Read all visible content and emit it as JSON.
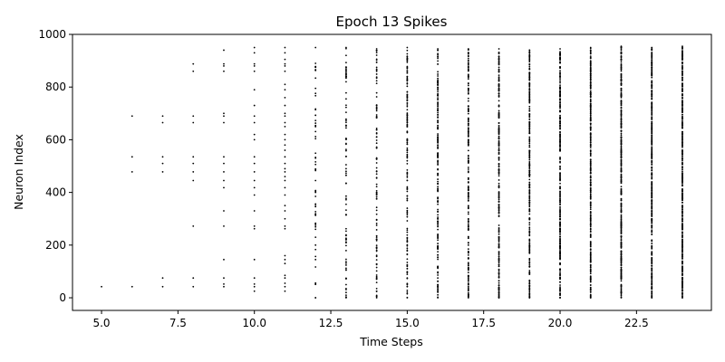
{
  "chart_data": {
    "type": "scatter",
    "title": "Epoch 13 Spikes",
    "xlabel": "Time Steps",
    "ylabel": "Neuron Index",
    "xlim": [
      4.05,
      24.95
    ],
    "ylim": [
      -48,
      1000
    ],
    "xticks": [
      5.0,
      7.5,
      10.0,
      12.5,
      15.0,
      17.5,
      20.0,
      22.5
    ],
    "xtick_labels": [
      "5.0",
      "7.5",
      "10.0",
      "12.5",
      "15.0",
      "17.5",
      "20.0",
      "22.5"
    ],
    "yticks": [
      0,
      200,
      400,
      600,
      800,
      1000
    ],
    "ytick_labels": [
      "0",
      "200",
      "400",
      "600",
      "800",
      "1000"
    ],
    "grid": false,
    "marker_color": "#000000",
    "series": [
      {
        "columns": [
          {
            "t": 5,
            "neurons": [
              42
            ]
          },
          {
            "t": 6,
            "neurons": [
              42,
              478,
              535,
              690
            ]
          },
          {
            "t": 7,
            "neurons": [
              42,
              75,
              478,
              510,
              535,
              665,
              690
            ]
          },
          {
            "t": 8,
            "neurons": [
              42,
              75,
              272,
              445,
              478,
              510,
              535,
              665,
              690,
              860,
              888
            ]
          },
          {
            "t": 9,
            "neurons": [
              42,
              52,
              75,
              145,
              272,
              330,
              418,
              445,
              478,
              510,
              535,
              665,
              690,
              700,
              860,
              880,
              888,
              940
            ]
          },
          {
            "t": 10,
            "neurons": [
              25,
              42,
              52,
              75,
              145,
              262,
              272,
              330,
              390,
              418,
              445,
              478,
              510,
              535,
              600,
              620,
              665,
              690,
              730,
              790,
              860,
              880,
              888,
              930,
              950
            ]
          },
          {
            "t": 11,
            "neurons": [
              25,
              42,
              55,
              75,
              85,
              130,
              145,
              160,
              262,
              272,
              300,
              330,
              350,
              390,
              418,
              445,
              460,
              478,
              490,
              510,
              535,
              560,
              580,
              600,
              620,
              650,
              665,
              690,
              700,
              730,
              760,
              790,
              810,
              860,
              880,
              888,
              905,
              930,
              950
            ]
          }
        ]
      }
    ]
  }
}
